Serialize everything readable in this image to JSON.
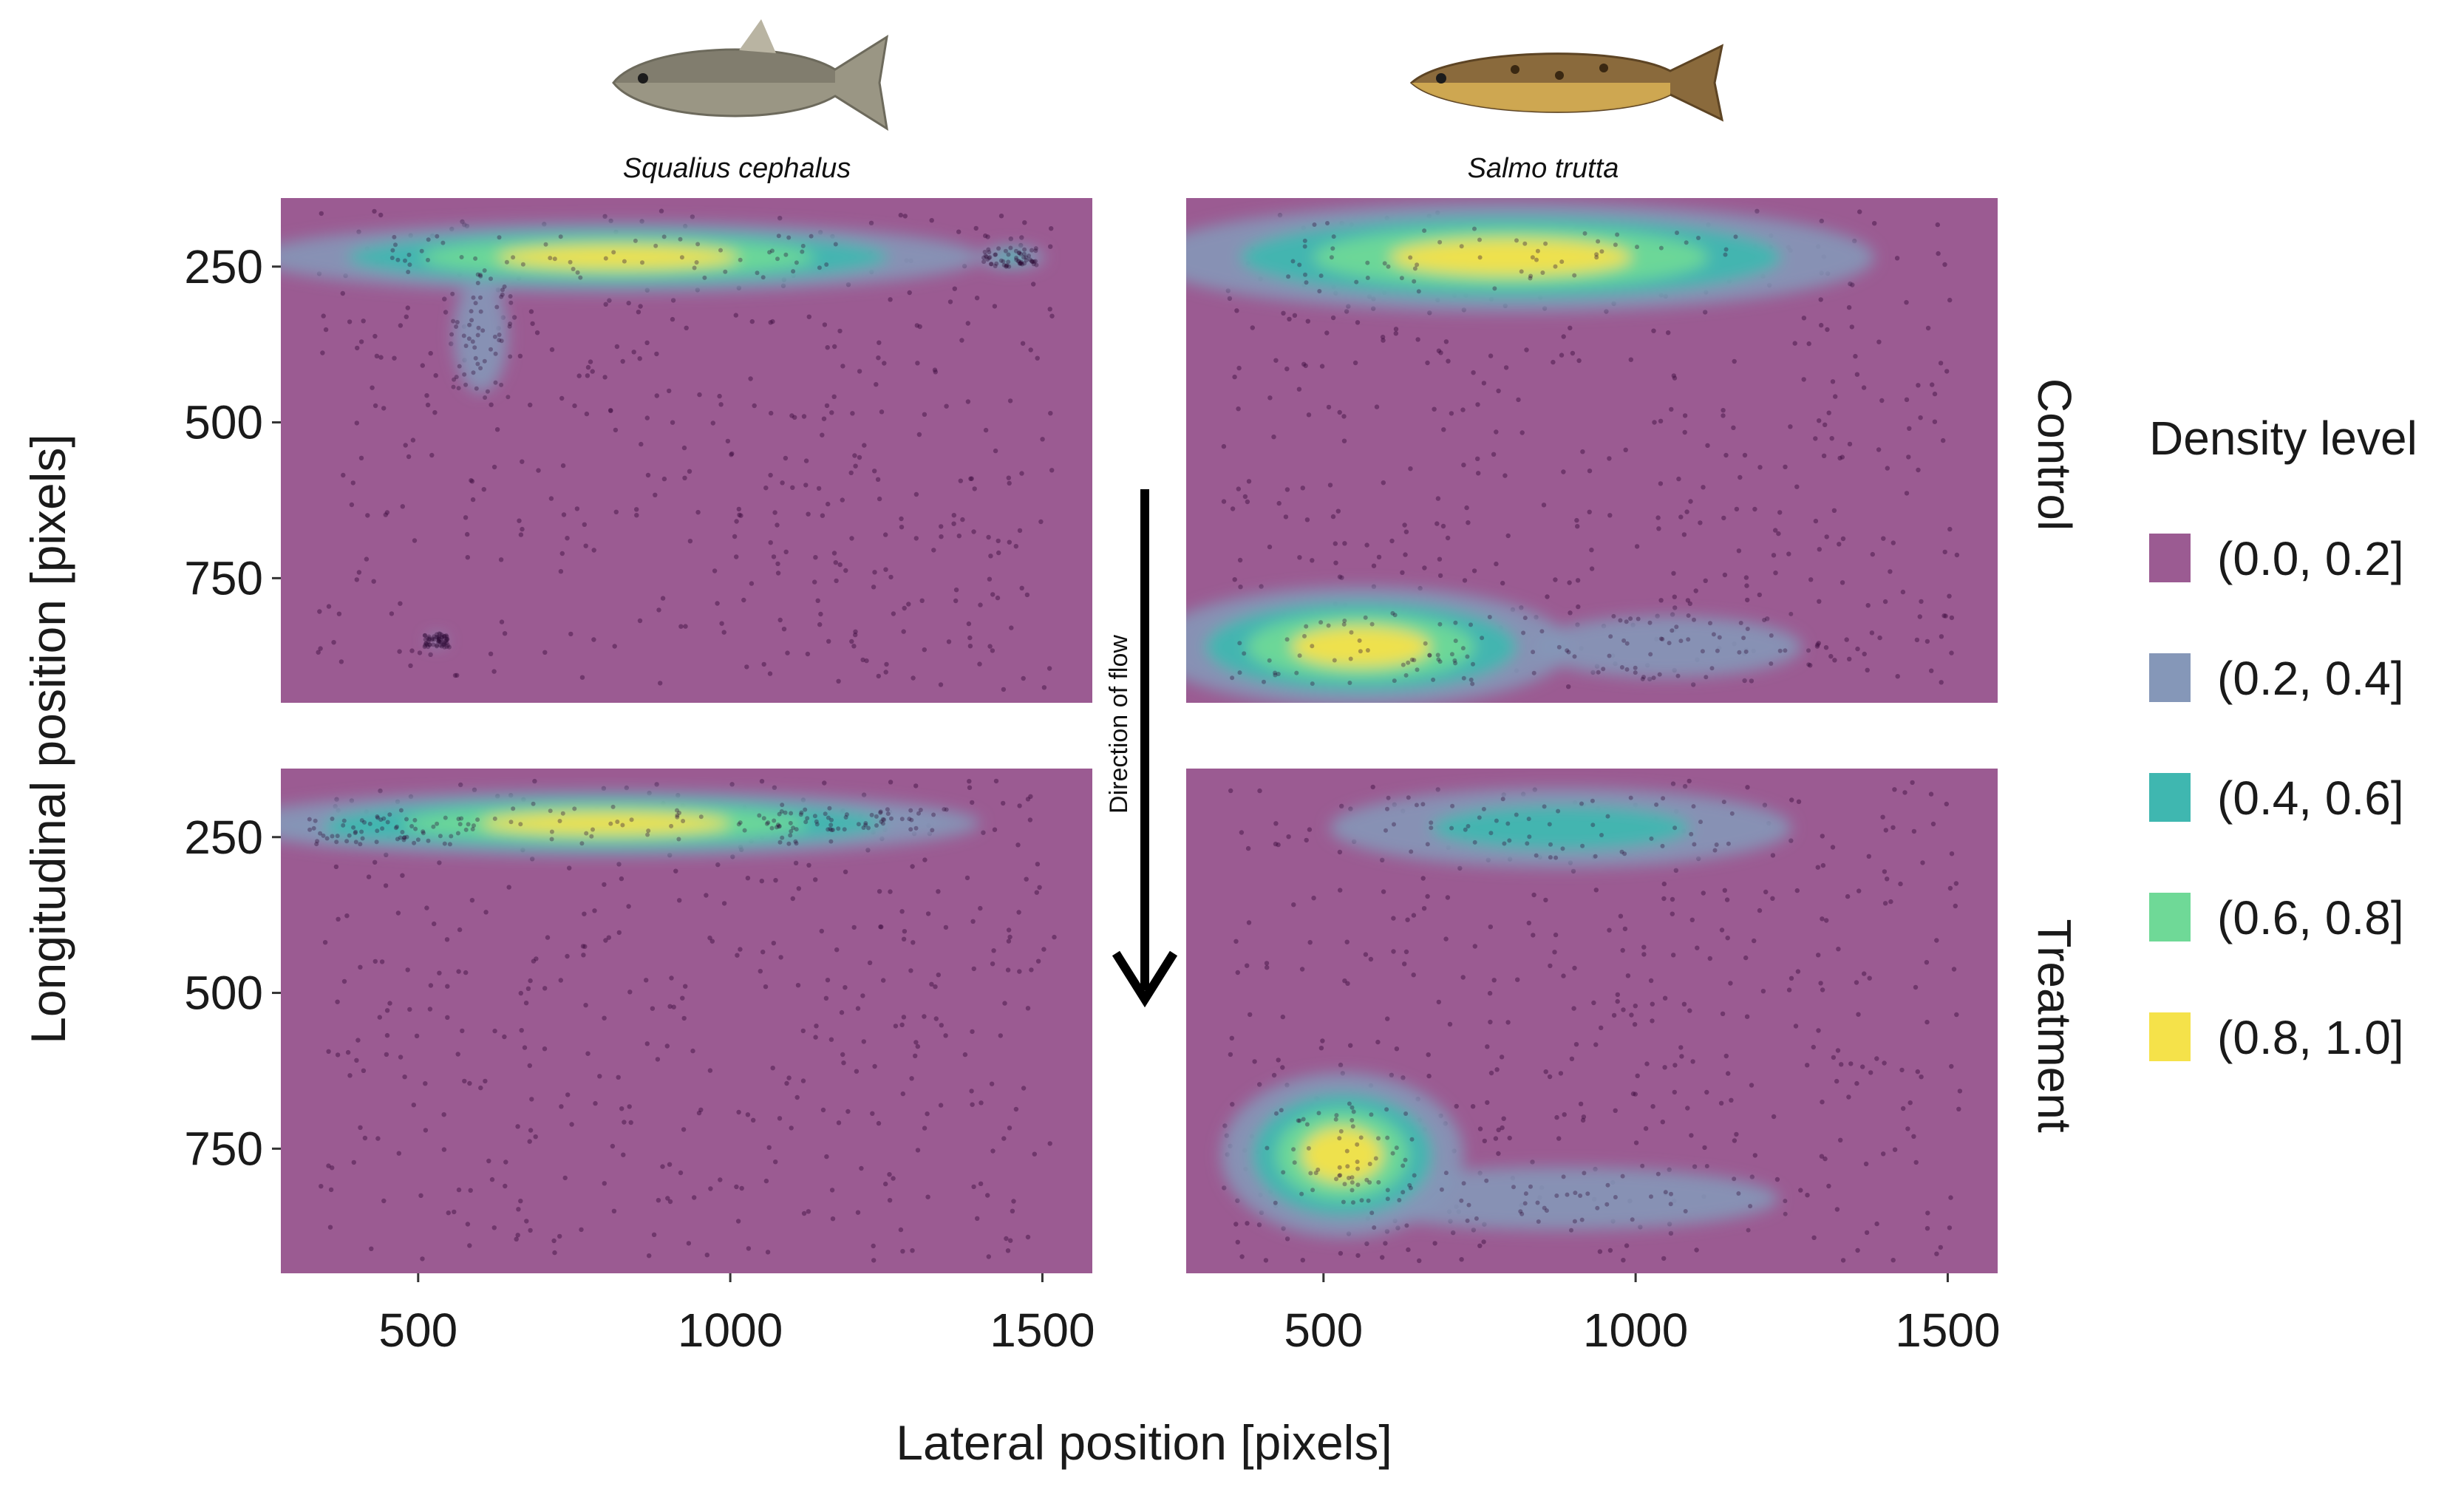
{
  "chart_data": {
    "type": "heatmap",
    "title": "",
    "xlabel": "Lateral position [pixels]",
    "ylabel": "Longitudinal position [pixels]",
    "xlim": [
      280,
      1580
    ],
    "ylim": [
      140,
      950
    ],
    "x_ticks": [
      "500",
      "1000",
      "1500"
    ],
    "y_ticks": [
      "250",
      "500",
      "750"
    ],
    "x_tick_values": [
      500,
      1000,
      1500
    ],
    "y_tick_values": [
      250,
      500,
      750
    ],
    "columns": [
      "Squalius cephalus",
      "Salmo trutta"
    ],
    "rows": [
      "Control",
      "Treatment"
    ],
    "legend": {
      "title": "Density level",
      "levels": [
        {
          "label": "(0.0, 0.2]",
          "color": "#9b5b92"
        },
        {
          "label": "(0.2, 0.4]",
          "color": "#8597b8"
        },
        {
          "label": "(0.4, 0.6]",
          "color": "#3fb7b0"
        },
        {
          "label": "(0.6, 0.8]",
          "color": "#6fd997"
        },
        {
          "label": "(0.8, 1.0]",
          "color": "#f5e24a"
        }
      ]
    },
    "annotation": "Direction of flow",
    "panels": [
      {
        "species": "Squalius cephalus",
        "condition": "Control",
        "hotspots": [
          {
            "x": 820,
            "y": 235,
            "sx": 330,
            "sy": 32,
            "peak": 0.95
          },
          {
            "x": 1450,
            "y": 235,
            "sx": 40,
            "sy": 14,
            "peak": 0.5
          },
          {
            "x": 600,
            "y": 360,
            "sx": 45,
            "sy": 95,
            "peak": 0.32
          },
          {
            "x": 530,
            "y": 850,
            "sx": 18,
            "sy": 10,
            "peak": 0.3
          }
        ]
      },
      {
        "species": "Salmo trutta",
        "condition": "Control",
        "hotspots": [
          {
            "x": 800,
            "y": 235,
            "sx": 330,
            "sy": 50,
            "peak": 0.95
          },
          {
            "x": 560,
            "y": 860,
            "sx": 190,
            "sy": 55,
            "peak": 0.95
          },
          {
            "x": 1050,
            "y": 860,
            "sx": 210,
            "sy": 48,
            "peak": 0.34
          }
        ]
      },
      {
        "species": "Squalius cephalus",
        "condition": "Treatment",
        "hotspots": [
          {
            "x": 800,
            "y": 228,
            "sx": 340,
            "sy": 30,
            "peak": 0.95
          },
          {
            "x": 450,
            "y": 240,
            "sx": 130,
            "sy": 20,
            "peak": 0.55
          },
          {
            "x": 1200,
            "y": 222,
            "sx": 140,
            "sy": 16,
            "peak": 0.35
          }
        ]
      },
      {
        "species": "Salmo trutta",
        "condition": "Treatment",
        "hotspots": [
          {
            "x": 880,
            "y": 235,
            "sx": 260,
            "sy": 45,
            "peak": 0.55
          },
          {
            "x": 530,
            "y": 760,
            "sx": 110,
            "sy": 75,
            "peak": 0.95
          },
          {
            "x": 880,
            "y": 830,
            "sx": 330,
            "sy": 48,
            "peak": 0.35
          }
        ]
      }
    ]
  }
}
